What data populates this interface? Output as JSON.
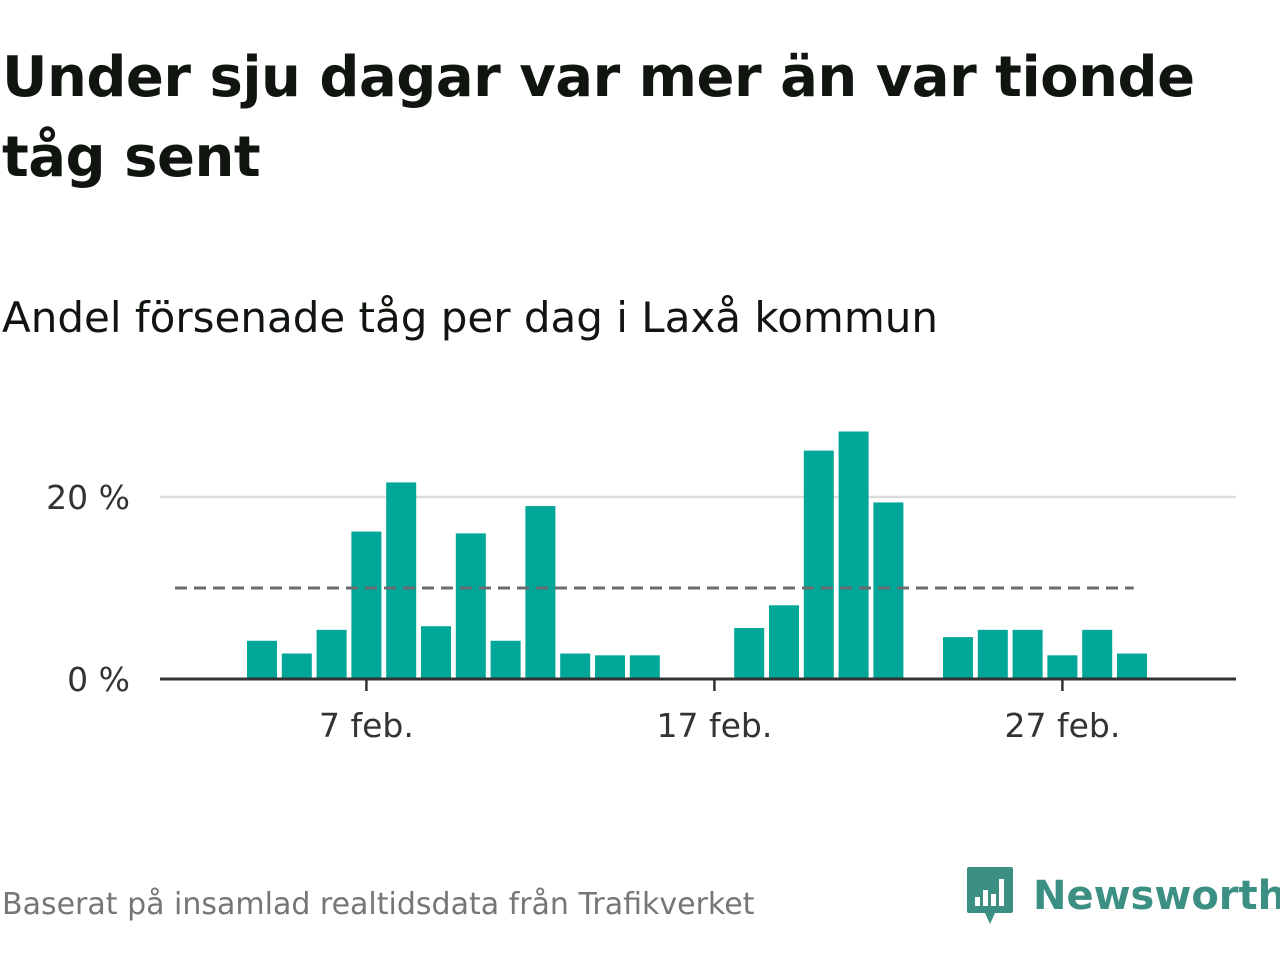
{
  "header": {
    "title": "Under sju dagar var mer än var tionde tåg sent",
    "subtitle": "Andel försenade tåg per dag i Laxå kommun"
  },
  "footer": {
    "source": "Baserat på insamlad realtidsdata från Trafikverket",
    "brand": "Newsworthy"
  },
  "colors": {
    "bar": "#00a698",
    "reference_line": "#6b6b72",
    "grid": "#dddddd",
    "baseline": "#333333",
    "brand": "#3c8f83"
  },
  "chart_data": {
    "type": "bar",
    "x": [
      "1 feb.",
      "2 feb.",
      "3 feb.",
      "4 feb.",
      "5 feb.",
      "6 feb.",
      "7 feb.",
      "8 feb.",
      "9 feb.",
      "10 feb.",
      "11 feb.",
      "12 feb.",
      "13 feb.",
      "14 feb.",
      "15 feb.",
      "16 feb.",
      "17 feb.",
      "18 feb.",
      "19 feb.",
      "20 feb.",
      "21 feb.",
      "22 feb.",
      "23 feb.",
      "24 feb.",
      "25 feb.",
      "26 feb.",
      "27 feb.",
      "28 feb.",
      "29 feb."
    ],
    "values": [
      null,
      null,
      null,
      4.2,
      2.8,
      5.4,
      16.2,
      21.6,
      5.8,
      16.0,
      4.2,
      19.0,
      2.8,
      2.6,
      2.6,
      null,
      null,
      5.6,
      8.1,
      25.1,
      27.2,
      19.4,
      null,
      4.6,
      5.4,
      5.4,
      2.6,
      5.4,
      2.8
    ],
    "reference_line": {
      "value": 10,
      "from": "2 feb.",
      "to": "29 feb.",
      "style": "dashed"
    },
    "ylim": [
      0,
      30
    ],
    "yticks": [
      0,
      20
    ],
    "ytick_labels": [
      "0 %",
      "20 %"
    ],
    "xticks": [
      "7 feb.",
      "17 feb.",
      "27 feb."
    ],
    "grid": true,
    "xlabel": "",
    "ylabel": ""
  }
}
